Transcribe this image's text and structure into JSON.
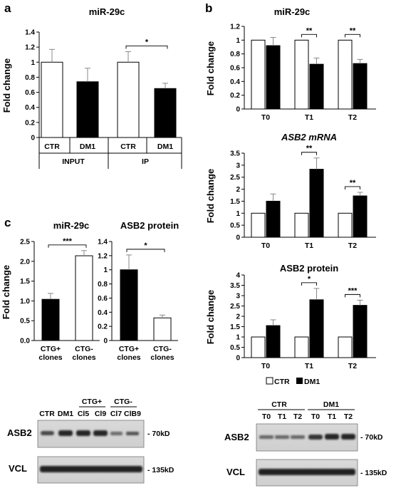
{
  "panel_letters": {
    "a": "a",
    "b": "b",
    "c": "c"
  },
  "legend": {
    "ctr": "CTR",
    "dm1": "DM1"
  },
  "colors": {
    "ctr": "#ffffff",
    "dm1": "#000000",
    "axis": "#000000"
  },
  "blots": {
    "left": {
      "lanes": [
        "CTR",
        "DM1",
        "Cl5",
        "Cl9",
        "Cl7",
        "ClB9"
      ],
      "groups": [
        "CTG+",
        "CTG-"
      ],
      "rows": [
        "ASB2",
        "VCL"
      ],
      "markers": [
        "- 70kD",
        "- 135kD"
      ]
    },
    "right": {
      "groups": [
        "CTR",
        "DM1"
      ],
      "lanes": [
        "T0",
        "T1",
        "T2",
        "T0",
        "T1",
        "T2"
      ],
      "rows": [
        "ASB2",
        "VCL"
      ],
      "markers": [
        "- 70kD",
        "- 135kD"
      ]
    }
  },
  "chart_data": [
    {
      "id": "a",
      "type": "bar",
      "title": "miR-29c",
      "ylabel": "Fold change",
      "ylim": [
        0,
        1.4
      ],
      "yticks": [
        "0",
        "0.2",
        "0.4",
        "0.6",
        "0.8",
        "1",
        "1.2",
        "1.4"
      ],
      "categories": [
        "CTR",
        "DM1",
        "CTR",
        "DM1"
      ],
      "groups": [
        "INPUT",
        "IP"
      ],
      "values": [
        1.0,
        0.74,
        1.0,
        0.65
      ],
      "errors": [
        0.17,
        0.18,
        0.14,
        0.07
      ],
      "fills": [
        "ctr",
        "dm1",
        "ctr",
        "dm1"
      ],
      "significance": [
        {
          "a": 2,
          "b": 3,
          "label": "*"
        }
      ]
    },
    {
      "id": "b1",
      "type": "bar",
      "title": "miR-29c",
      "ylabel": "Fold change",
      "ylim": [
        0,
        1.2
      ],
      "yticks": [
        "0",
        "0.2",
        "0.4",
        "0.6",
        "0.8",
        "1",
        "1.2"
      ],
      "categories": [
        "T0",
        "T1",
        "T2"
      ],
      "series": [
        {
          "name": "CTR",
          "values": [
            1.0,
            1.0,
            1.0
          ],
          "errors": [
            0,
            0,
            0
          ]
        },
        {
          "name": "DM1",
          "values": [
            0.92,
            0.65,
            0.66
          ],
          "errors": [
            0.12,
            0.09,
            0.06
          ]
        }
      ],
      "significance": [
        {
          "cat": 1,
          "label": "**"
        },
        {
          "cat": 2,
          "label": "**"
        }
      ]
    },
    {
      "id": "b2",
      "type": "bar",
      "title": "ASB2 mRNA",
      "ylabel": "Fold change",
      "ylim": [
        0,
        3.5
      ],
      "yticks": [
        "0",
        "0.5",
        "1",
        "1.5",
        "2",
        "2.5",
        "3",
        "3.5"
      ],
      "categories": [
        "T0",
        "T1",
        "T2"
      ],
      "series": [
        {
          "name": "CTR",
          "values": [
            1.0,
            1.0,
            1.0
          ],
          "errors": [
            0,
            0,
            0
          ]
        },
        {
          "name": "DM1",
          "values": [
            1.5,
            2.83,
            1.72
          ],
          "errors": [
            0.3,
            0.47,
            0.15
          ]
        }
      ],
      "significance": [
        {
          "cat": 1,
          "label": "**"
        },
        {
          "cat": 2,
          "label": "**"
        }
      ]
    },
    {
      "id": "b3",
      "type": "bar",
      "title": "ASB2 protein",
      "ylabel": "Fold change",
      "ylim": [
        0,
        4
      ],
      "yticks": [
        "0",
        "0.5",
        "1",
        "1.5",
        "2",
        "2.5",
        "3",
        "3.5",
        "4"
      ],
      "categories": [
        "T0",
        "T1",
        "T2"
      ],
      "series": [
        {
          "name": "CTR",
          "values": [
            1.0,
            1.0,
            1.0
          ],
          "errors": [
            0,
            0,
            0
          ]
        },
        {
          "name": "DM1",
          "values": [
            1.55,
            2.8,
            2.53
          ],
          "errors": [
            0.28,
            0.55,
            0.25
          ]
        }
      ],
      "significance": [
        {
          "cat": 1,
          "label": "*"
        },
        {
          "cat": 2,
          "label": "***"
        }
      ]
    },
    {
      "id": "c1",
      "type": "bar",
      "title": "miR-29c",
      "ylabel": "Fold change",
      "ylim": [
        0,
        2.5
      ],
      "yticks": [
        "0.0",
        "0.5",
        "1.0",
        "1.5",
        "2.0",
        "2.5"
      ],
      "categories": [
        [
          "CTG+",
          "clones"
        ],
        [
          "CTG-",
          "clones"
        ]
      ],
      "values": [
        1.04,
        2.14
      ],
      "errors": [
        0.15,
        0.13
      ],
      "fills": [
        "dm1",
        "ctr"
      ],
      "significance": [
        {
          "a": 0,
          "b": 1,
          "label": "***"
        }
      ]
    },
    {
      "id": "c2",
      "type": "bar",
      "title": "ASB2 protein",
      "ylabel": "",
      "ylim": [
        0,
        1.4
      ],
      "yticks": [
        "0",
        "0.2",
        "0.4",
        "0.6",
        "0.8",
        "1",
        "1.2",
        "1.4"
      ],
      "categories": [
        [
          "CTG+",
          "clones"
        ],
        [
          "CTG-",
          "clones"
        ]
      ],
      "values": [
        1.0,
        0.32
      ],
      "errors": [
        0.21,
        0.04
      ],
      "fills": [
        "dm1",
        "ctr"
      ],
      "significance": [
        {
          "a": 0,
          "b": 1,
          "label": "*"
        }
      ]
    }
  ]
}
